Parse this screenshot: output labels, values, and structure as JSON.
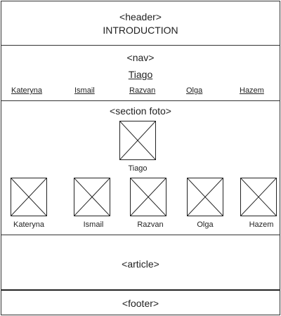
{
  "header": {
    "tag": "<header>",
    "title": "INTRODUCTION"
  },
  "nav": {
    "tag": "<nav>",
    "main_link": "Tiago",
    "links": [
      "Kateryna",
      "Ismail",
      "Razvan",
      "Olga",
      "Hazem"
    ]
  },
  "section_foto": {
    "tag": "<section foto>",
    "main_caption": "Tiago",
    "captions": [
      "Kateryna",
      "Ismail",
      "Razvan",
      "Olga",
      "Hazem"
    ],
    "placeholder_icon": "image-placeholder-icon"
  },
  "article": {
    "tag": "<article>"
  },
  "footer": {
    "tag": "<footer>"
  }
}
